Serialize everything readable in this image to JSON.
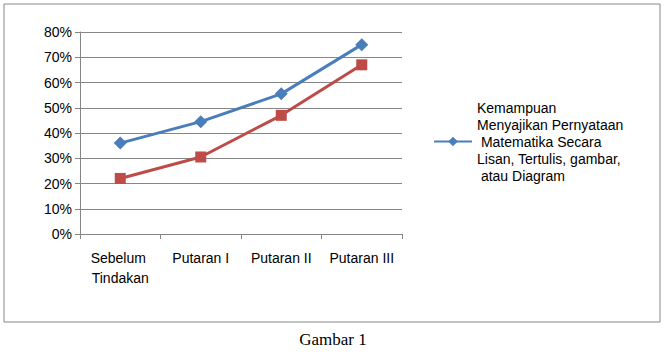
{
  "chart_data": {
    "type": "line",
    "title": "Gambar 1",
    "categories": [
      "Sebelum Tindakan",
      "Putaran I",
      "Putaran II",
      "Putaran III"
    ],
    "series": [
      {
        "name": "Kemampuan Menyajikan Pernyataan Matematika Secara Lisan, Tertulis, gambar, atau Diagram",
        "color": "#4a7ebb",
        "marker": "diamond",
        "values": [
          36,
          44.5,
          55.5,
          75
        ]
      },
      {
        "color": "#be4b48",
        "marker": "square",
        "values": [
          22,
          30.5,
          47,
          67
        ]
      }
    ],
    "ylim": [
      0,
      80
    ],
    "yticks": [
      {
        "value": 0,
        "label": "0%"
      },
      {
        "value": 10,
        "label": "10%"
      },
      {
        "value": 20,
        "label": "20%"
      },
      {
        "value": 30,
        "label": "30%"
      },
      {
        "value": 40,
        "label": "40%"
      },
      {
        "value": 50,
        "label": "50%"
      },
      {
        "value": 60,
        "label": "60%"
      },
      {
        "value": 70,
        "label": "70%"
      },
      {
        "value": 80,
        "label": "80%"
      }
    ],
    "grid": true,
    "legend": "right"
  }
}
